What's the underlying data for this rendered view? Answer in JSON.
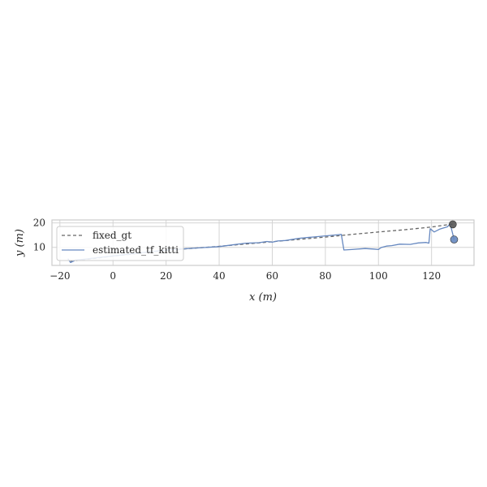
{
  "chart_data": {
    "type": "line",
    "xlabel": "x (m)",
    "ylabel": "y (m)",
    "xlim": [
      -23,
      136
    ],
    "ylim": [
      2.6,
      21.2
    ],
    "xticks": [
      -20,
      0,
      20,
      40,
      60,
      80,
      100,
      120
    ],
    "yticks": [
      10,
      20
    ],
    "grid": true,
    "legend_position": "upper-left",
    "series": [
      {
        "name": "fixed_gt",
        "style": "dashed",
        "color": "#666666",
        "points": [
          [
            -16,
            4.3
          ],
          [
            0,
            6.4
          ],
          [
            20,
            8.8
          ],
          [
            40,
            10.4
          ],
          [
            60,
            12.3
          ],
          [
            80,
            14.2
          ],
          [
            90,
            15.3
          ],
          [
            100,
            16.3
          ],
          [
            110,
            17.2
          ],
          [
            120,
            18.3
          ],
          [
            127,
            19.4
          ],
          [
            128,
            19.4
          ]
        ]
      },
      {
        "name": "estimated_tf_kitti",
        "style": "solid",
        "color": "#6688c0",
        "points": [
          [
            -17,
            5.4
          ],
          [
            -16,
            3.8
          ],
          [
            -14,
            4.8
          ],
          [
            -12,
            5.0
          ],
          [
            0,
            6.5
          ],
          [
            20,
            8.9
          ],
          [
            40,
            10.3
          ],
          [
            45,
            11.0
          ],
          [
            50,
            11.7
          ],
          [
            55,
            11.9
          ],
          [
            58,
            12.4
          ],
          [
            60,
            12.1
          ],
          [
            62,
            12.6
          ],
          [
            65,
            12.8
          ],
          [
            70,
            13.7
          ],
          [
            75,
            14.2
          ],
          [
            80,
            14.7
          ],
          [
            85,
            15.2
          ],
          [
            86,
            15.3
          ],
          [
            87,
            8.9
          ],
          [
            90,
            9.1
          ],
          [
            95,
            9.5
          ],
          [
            98,
            9.3
          ],
          [
            100,
            9.1
          ],
          [
            101,
            9.9
          ],
          [
            103,
            10.5
          ],
          [
            105,
            10.7
          ],
          [
            108,
            11.3
          ],
          [
            112,
            11.2
          ],
          [
            115,
            11.8
          ],
          [
            118,
            12.0
          ],
          [
            119,
            11.7
          ],
          [
            119.5,
            17.6
          ],
          [
            121,
            16.3
          ],
          [
            123,
            17.4
          ],
          [
            126,
            18.4
          ],
          [
            127,
            19.7
          ],
          [
            128.5,
            13.2
          ]
        ]
      }
    ],
    "markers": [
      {
        "series": "fixed_gt",
        "point": [
          128,
          19.4
        ],
        "color": "#555555"
      },
      {
        "series": "estimated_tf_kitti",
        "point": [
          128.5,
          13.2
        ],
        "color": "#6688c0"
      }
    ]
  }
}
